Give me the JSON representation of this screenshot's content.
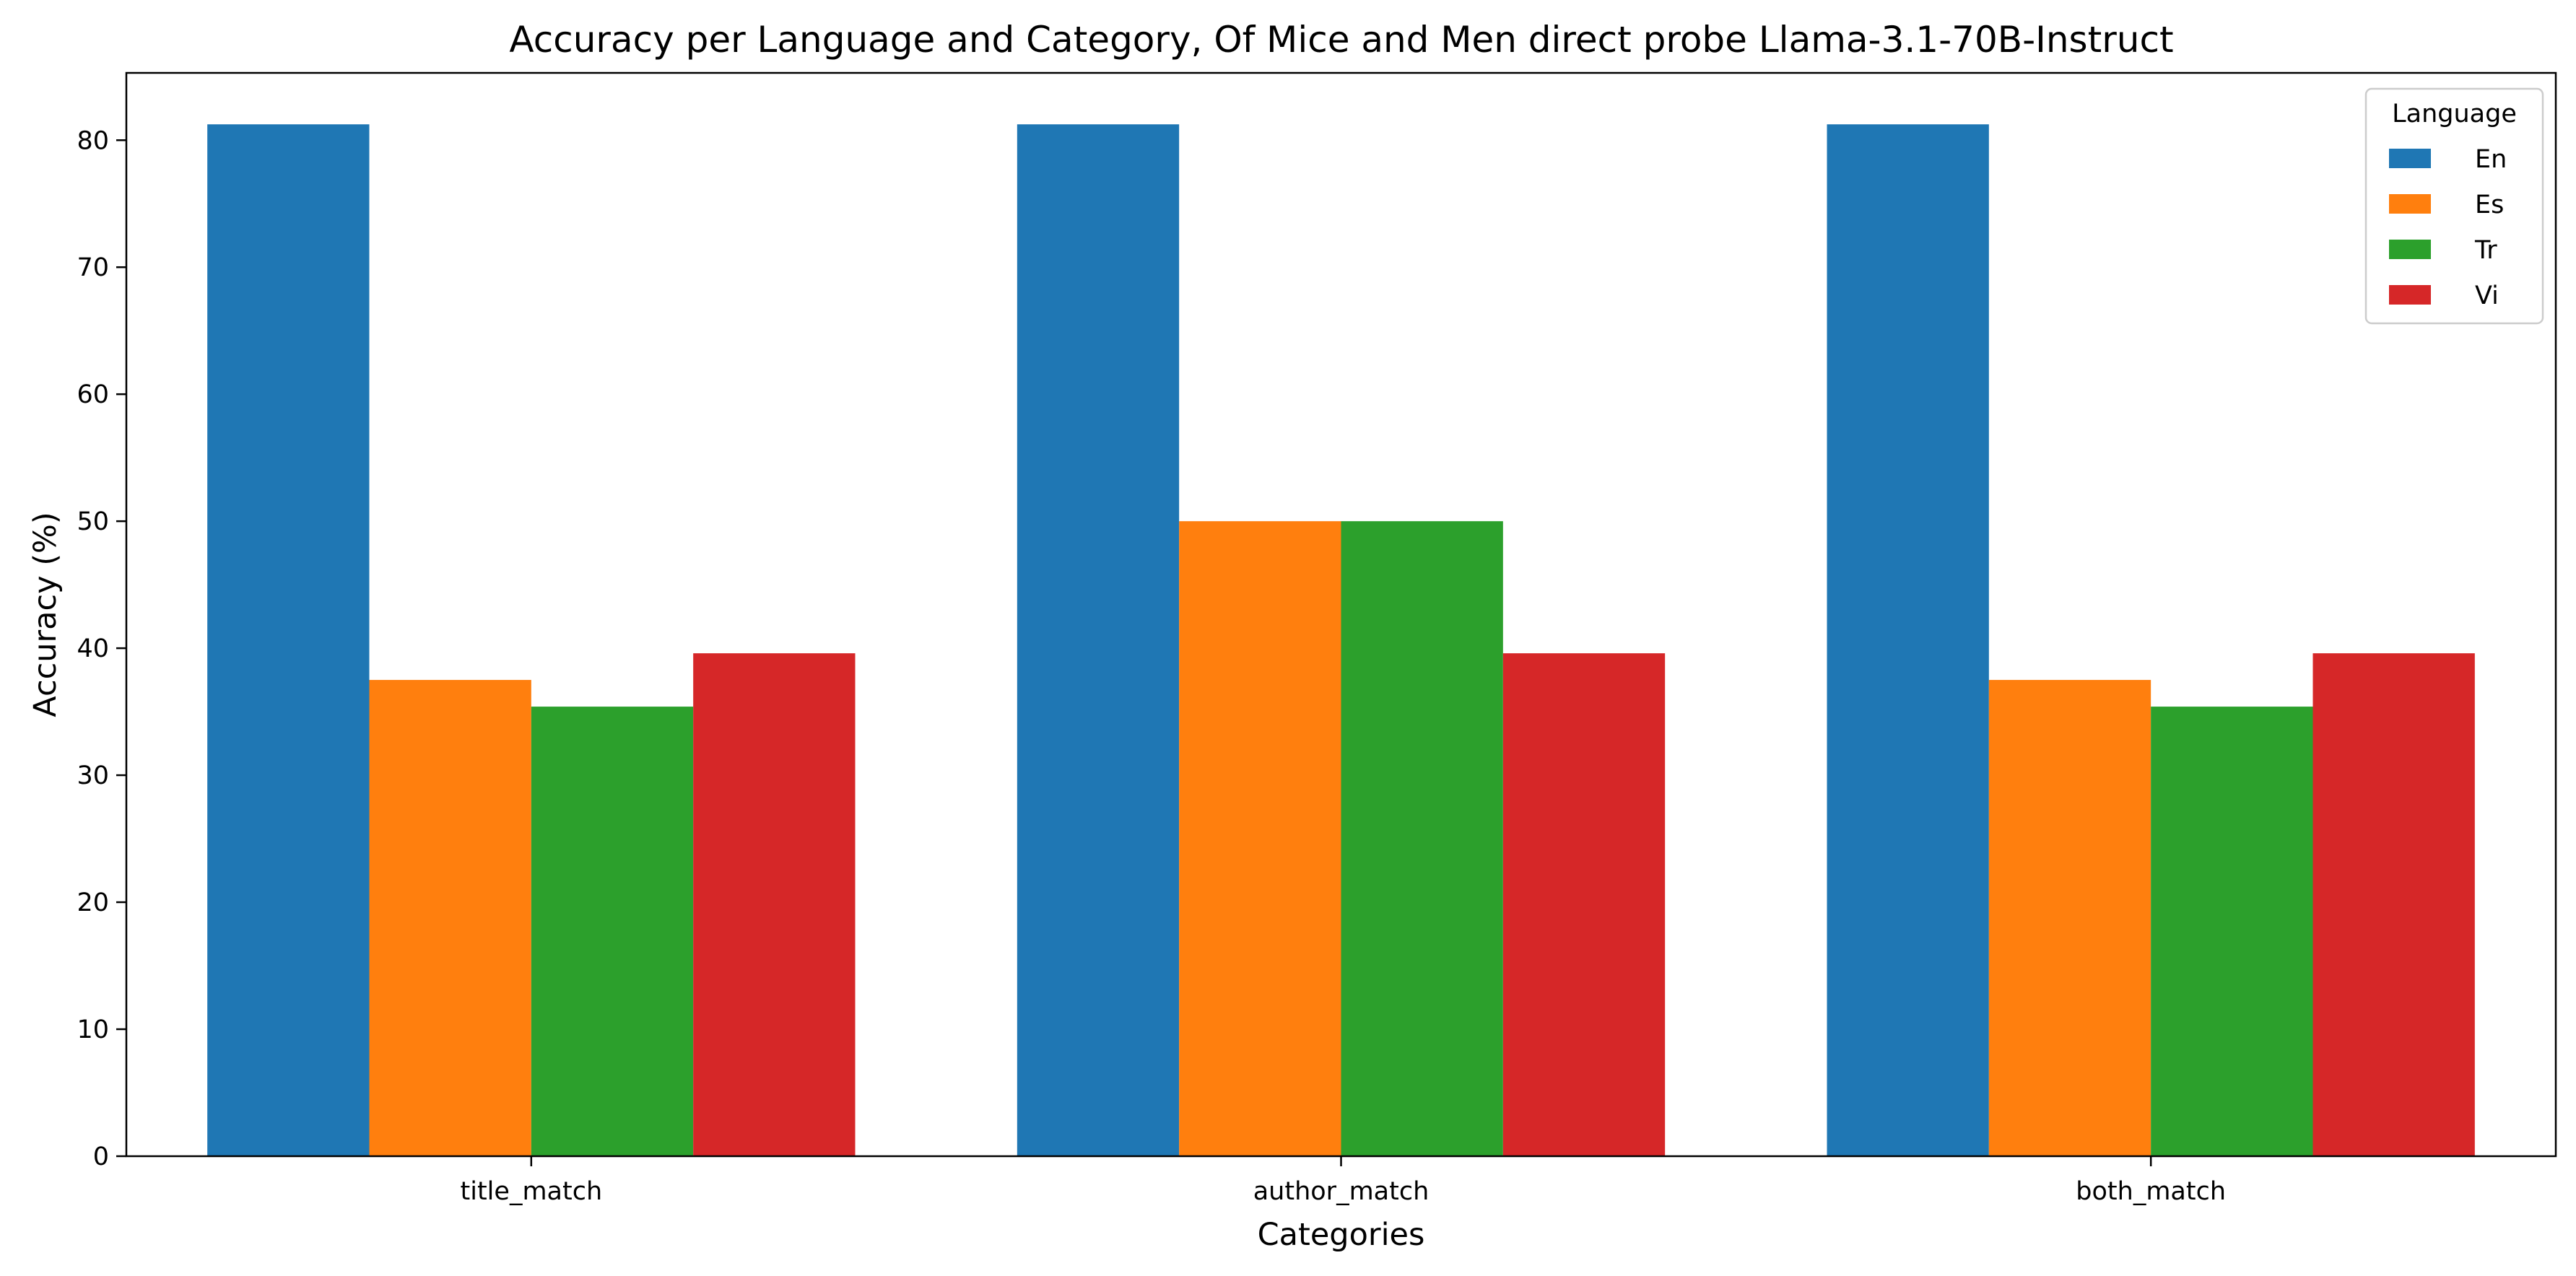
{
  "chart_data": {
    "type": "bar",
    "title": "Accuracy per Language and Category, Of Mice and Men direct probe Llama-3.1-70B-Instruct",
    "xlabel": "Categories",
    "ylabel": "Accuracy (%)",
    "categories": [
      "title_match",
      "author_match",
      "both_match"
    ],
    "series": [
      {
        "name": "En",
        "color": "#1f77b4",
        "values": [
          81.25,
          81.25,
          81.25
        ]
      },
      {
        "name": "Es",
        "color": "#ff7f0e",
        "values": [
          37.5,
          50.0,
          37.5
        ]
      },
      {
        "name": "Tr",
        "color": "#2ca02c",
        "values": [
          35.4,
          50.0,
          35.4
        ]
      },
      {
        "name": "Vi",
        "color": "#d62728",
        "values": [
          39.6,
          39.6,
          39.6
        ]
      }
    ],
    "ylim": [
      0,
      85.3
    ],
    "yticks": [
      0,
      10,
      20,
      30,
      40,
      50,
      60,
      70,
      80
    ],
    "grid": false,
    "legend": {
      "title": "Language",
      "placement": "top-right"
    }
  }
}
